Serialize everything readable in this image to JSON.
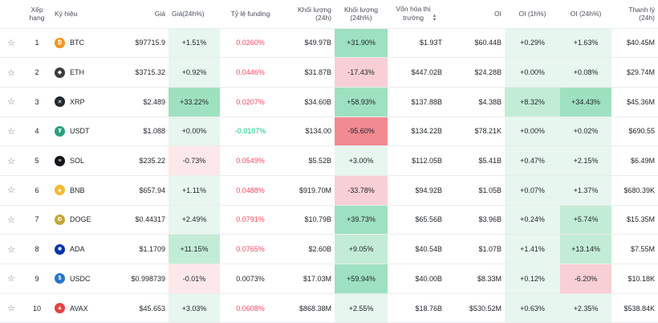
{
  "headers": {
    "rank": "Xếp hạng",
    "symbol": "Ký hiệu",
    "price": "Giá",
    "price24": "Giá(24h%)",
    "funding": "Tỷ lệ funding",
    "vol24": "Khối lượng (24h)",
    "vol24pct": "Khối lượng (24h%)",
    "mcap_line1": "Vốn hóa thị",
    "mcap_line2": "trường",
    "oi": "OI",
    "oi1h": "OI (1h%)",
    "oi24": "OI (24h%)",
    "liq": "Thanh lý (24h)"
  },
  "rows": [
    {
      "rank": "1",
      "symbol": "BTC",
      "icon": "bitcoin-icon",
      "color": "#f7931a",
      "glyph": "₿",
      "price": "$97715.9",
      "price24": "+1.51%",
      "funding": "0.0260%",
      "vol24": "$49.97B",
      "vol24pct": "+31.90%",
      "mcap": "$1.93T",
      "oi": "$60.44B",
      "oi1h": "+0.29%",
      "oi24": "+1.63%",
      "liq": "$40.45M"
    },
    {
      "rank": "2",
      "symbol": "ETH",
      "icon": "ethereum-icon",
      "color": "#3c3c3d",
      "glyph": "◆",
      "price": "$3715.32",
      "price24": "+0.92%",
      "funding": "0.0446%",
      "vol24": "$31.87B",
      "vol24pct": "-17.43%",
      "mcap": "$447.02B",
      "oi": "$24.28B",
      "oi1h": "+0.00%",
      "oi24": "+0.08%",
      "liq": "$29.74M"
    },
    {
      "rank": "3",
      "symbol": "XRP",
      "icon": "xrp-icon",
      "color": "#23292f",
      "glyph": "✕",
      "price": "$2.489",
      "price24": "+33.22%",
      "funding": "0.0207%",
      "vol24": "$34.60B",
      "vol24pct": "+58.93%",
      "mcap": "$137.88B",
      "oi": "$4.38B",
      "oi1h": "+8.32%",
      "oi24": "+34.43%",
      "liq": "$45.36M"
    },
    {
      "rank": "4",
      "symbol": "USDT",
      "icon": "tether-icon",
      "color": "#26a17b",
      "glyph": "₮",
      "price": "$1.088",
      "price24": "+0.00%",
      "funding": "-0.0107%",
      "vol24": "$134.00",
      "vol24pct": "-95.60%",
      "mcap": "$134.22B",
      "oi": "$78.21K",
      "oi1h": "+0.00%",
      "oi24": "+0.02%",
      "liq": "$690.55"
    },
    {
      "rank": "5",
      "symbol": "SOL",
      "icon": "solana-icon",
      "color": "#14151a",
      "glyph": "≡",
      "price": "$235.22",
      "price24": "-0.73%",
      "funding": "0.0549%",
      "vol24": "$5.52B",
      "vol24pct": "+3.00%",
      "mcap": "$112.05B",
      "oi": "$5.41B",
      "oi1h": "+0.47%",
      "oi24": "+2.15%",
      "liq": "$6.49M"
    },
    {
      "rank": "6",
      "symbol": "BNB",
      "icon": "bnb-icon",
      "color": "#f3ba2f",
      "glyph": "◈",
      "price": "$657.94",
      "price24": "+1.11%",
      "funding": "0.0488%",
      "vol24": "$919.70M",
      "vol24pct": "-33.78%",
      "mcap": "$94.92B",
      "oi": "$1.05B",
      "oi1h": "+0.07%",
      "oi24": "+1.37%",
      "liq": "$680.39K"
    },
    {
      "rank": "7",
      "symbol": "DOGE",
      "icon": "dogecoin-icon",
      "color": "#c2a633",
      "glyph": "Ð",
      "price": "$0.44317",
      "price24": "+2.49%",
      "funding": "0.0791%",
      "vol24": "$10.79B",
      "vol24pct": "+39.73%",
      "mcap": "$65.56B",
      "oi": "$3.96B",
      "oi1h": "+0.24%",
      "oi24": "+5.74%",
      "liq": "$15.35M"
    },
    {
      "rank": "8",
      "symbol": "ADA",
      "icon": "cardano-icon",
      "color": "#0033ad",
      "glyph": "✺",
      "price": "$1.1709",
      "price24": "+11.15%",
      "funding": "0.0765%",
      "vol24": "$2.60B",
      "vol24pct": "+9.05%",
      "mcap": "$40.54B",
      "oi": "$1.07B",
      "oi1h": "+1.41%",
      "oi24": "+13.14%",
      "liq": "$7.55M"
    },
    {
      "rank": "9",
      "symbol": "USDC",
      "icon": "usdc-icon",
      "color": "#2775ca",
      "glyph": "$",
      "price": "$0.998739",
      "price24": "-0.01%",
      "funding": "0.0073%",
      "vol24": "$17.03M",
      "vol24pct": "+59.94%",
      "mcap": "$40.00B",
      "oi": "$8.33M",
      "oi1h": "+0.12%",
      "oi24": "-6.20%",
      "liq": "$10.18K"
    },
    {
      "rank": "10",
      "symbol": "AVAX",
      "icon": "avalanche-icon",
      "color": "#e84142",
      "glyph": "▲",
      "price": "$45.653",
      "price24": "+3.03%",
      "funding": "0.0608%",
      "vol24": "$868.38M",
      "vol24pct": "+2.55%",
      "mcap": "$18.76B",
      "oi": "$530.52M",
      "oi1h": "+0.63%",
      "oi24": "+2.35%",
      "liq": "$538.84K"
    }
  ],
  "colors": {
    "pos_light": "#e7f6ee",
    "pos_mid": "#c3ecd6",
    "pos_strong": "#9ee1c0",
    "neg_light": "#fce8ea",
    "neg_mid": "#f8cfd4",
    "neg_strong": "#f28a92",
    "funding_neg": "#f6465d",
    "funding_pos": "#0ecb81"
  }
}
